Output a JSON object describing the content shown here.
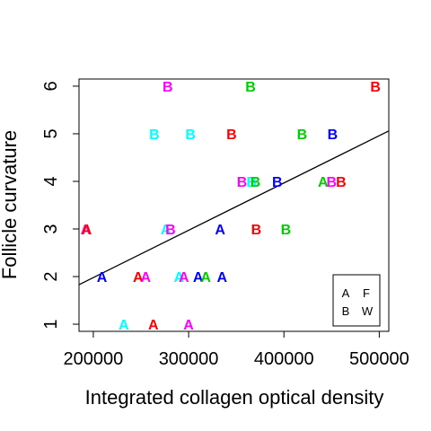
{
  "chart_data": {
    "type": "scatter",
    "title": "",
    "xlabel": "Integrated collagen optical density",
    "ylabel": "Follicle curvature",
    "xlim": [
      185000,
      510000
    ],
    "ylim": [
      0.85,
      6.15
    ],
    "xticks": [
      200000,
      300000,
      400000,
      500000
    ],
    "xtick_labels": [
      "200000",
      "300000",
      "400000",
      "500000"
    ],
    "yticks": [
      1,
      2,
      3,
      4,
      5,
      6
    ],
    "ytick_labels": [
      "1",
      "2",
      "3",
      "4",
      "5",
      "6"
    ],
    "grid": false,
    "legend_position": "bottom-right",
    "legend_entries": [
      "A",
      "F",
      "B",
      "W"
    ],
    "colors": {
      "red": "#ff0000",
      "green": "#00cd00",
      "blue": "#0000ff",
      "cyan": "#00ffff",
      "magenta": "#ff00ff",
      "black": "#000000"
    },
    "regression_line": {
      "x": [
        185000,
        510000
      ],
      "y": [
        1.83,
        5.06
      ]
    },
    "points": [
      {
        "label": "B",
        "x": 278000,
        "y": 6,
        "color": "magenta"
      },
      {
        "label": "B",
        "x": 365000,
        "y": 6,
        "color": "green"
      },
      {
        "label": "B",
        "x": 496000,
        "y": 6,
        "color": "red"
      },
      {
        "label": "B",
        "x": 264000,
        "y": 5,
        "color": "cyan"
      },
      {
        "label": "B",
        "x": 302000,
        "y": 5,
        "color": "cyan"
      },
      {
        "label": "B",
        "x": 345000,
        "y": 5,
        "color": "red"
      },
      {
        "label": "B",
        "x": 419000,
        "y": 5,
        "color": "green"
      },
      {
        "label": "B",
        "x": 451000,
        "y": 5,
        "color": "blue"
      },
      {
        "label": "B",
        "x": 356000,
        "y": 4,
        "color": "magenta"
      },
      {
        "label": "B",
        "x": 366000,
        "y": 4,
        "color": "cyan"
      },
      {
        "label": "B",
        "x": 370000,
        "y": 4,
        "color": "green"
      },
      {
        "label": "B",
        "x": 393000,
        "y": 4,
        "color": "blue"
      },
      {
        "label": "A",
        "x": 441000,
        "y": 4,
        "color": "green"
      },
      {
        "label": "B",
        "x": 450000,
        "y": 4,
        "color": "magenta"
      },
      {
        "label": "B",
        "x": 460000,
        "y": 4,
        "color": "red"
      },
      {
        "label": "A",
        "x": 192000,
        "y": 3,
        "color": "magenta"
      },
      {
        "label": "A",
        "x": 193000,
        "y": 3,
        "color": "red"
      },
      {
        "label": "A",
        "x": 276000,
        "y": 3,
        "color": "cyan"
      },
      {
        "label": "B",
        "x": 281000,
        "y": 3,
        "color": "magenta"
      },
      {
        "label": "A",
        "x": 333000,
        "y": 3,
        "color": "blue"
      },
      {
        "label": "B",
        "x": 371000,
        "y": 3,
        "color": "red"
      },
      {
        "label": "B",
        "x": 402000,
        "y": 3,
        "color": "green"
      },
      {
        "label": "A",
        "x": 209000,
        "y": 2,
        "color": "blue"
      },
      {
        "label": "A",
        "x": 247000,
        "y": 2,
        "color": "red"
      },
      {
        "label": "A",
        "x": 255000,
        "y": 2,
        "color": "magenta"
      },
      {
        "label": "A",
        "x": 290000,
        "y": 2,
        "color": "cyan"
      },
      {
        "label": "A",
        "x": 295000,
        "y": 2,
        "color": "magenta"
      },
      {
        "label": "A",
        "x": 310000,
        "y": 2,
        "color": "blue"
      },
      {
        "label": "A",
        "x": 318000,
        "y": 2,
        "color": "green"
      },
      {
        "label": "A",
        "x": 335000,
        "y": 2,
        "color": "blue"
      },
      {
        "label": "A",
        "x": 232000,
        "y": 1,
        "color": "cyan"
      },
      {
        "label": "A",
        "x": 263000,
        "y": 1,
        "color": "red"
      },
      {
        "label": "A",
        "x": 300000,
        "y": 1,
        "color": "magenta"
      }
    ]
  }
}
